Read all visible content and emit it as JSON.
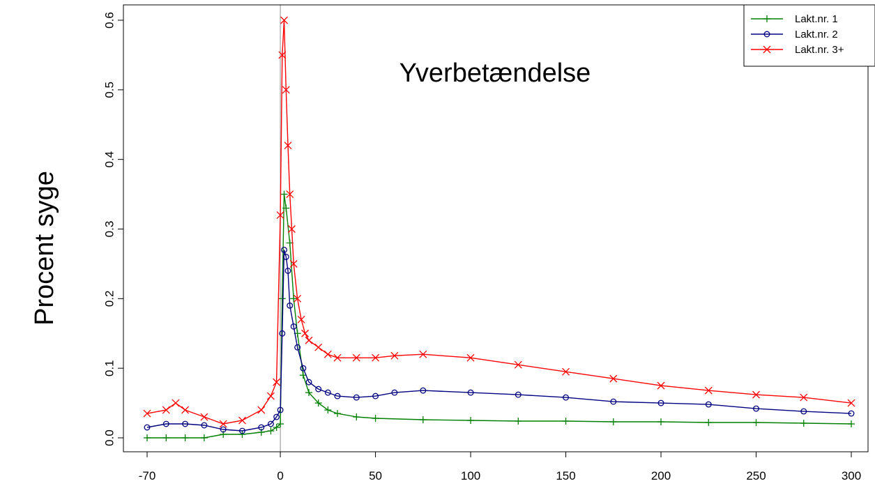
{
  "chart_data": {
    "type": "line",
    "title": "Yverbetændelse",
    "xlabel": "",
    "ylabel": "Procent syge",
    "xlim": [
      -70,
      300
    ],
    "ylim": [
      0,
      0.6
    ],
    "x_ticks": [
      -70,
      0,
      50,
      100,
      150,
      200,
      250,
      300
    ],
    "y_ticks": [
      0.0,
      0.1,
      0.2,
      0.3,
      0.4,
      0.5,
      0.6
    ],
    "x_tick_labels": [
      "-70",
      "0",
      "50",
      "100",
      "150",
      "200",
      "250",
      "300"
    ],
    "y_tick_labels": [
      "0.0",
      "0.1",
      "0.2",
      "0.3",
      "0.4",
      "0.5",
      "0.6"
    ],
    "vertical_reference_line": 0,
    "grid": false,
    "legend_position": "top-right",
    "series": [
      {
        "name": "Lakt.nr. 1",
        "color": "#008000",
        "marker": "plus",
        "x": [
          -70,
          -60,
          -50,
          -40,
          -30,
          -20,
          -10,
          -5,
          -2,
          0,
          1,
          2,
          3,
          5,
          7,
          9,
          12,
          15,
          20,
          25,
          30,
          40,
          50,
          75,
          100,
          125,
          150,
          175,
          200,
          225,
          250,
          275,
          300
        ],
        "y": [
          0.0,
          0.0,
          0.0,
          0.0,
          0.005,
          0.005,
          0.008,
          0.01,
          0.015,
          0.02,
          0.2,
          0.35,
          0.33,
          0.28,
          0.2,
          0.15,
          0.09,
          0.065,
          0.05,
          0.04,
          0.035,
          0.03,
          0.028,
          0.026,
          0.025,
          0.024,
          0.024,
          0.023,
          0.023,
          0.022,
          0.022,
          0.021,
          0.02
        ]
      },
      {
        "name": "Lakt.nr. 2",
        "color": "#000080",
        "marker": "circle",
        "x": [
          -70,
          -60,
          -50,
          -40,
          -30,
          -20,
          -10,
          -5,
          -2,
          0,
          1,
          2,
          3,
          4,
          5,
          7,
          9,
          12,
          15,
          20,
          25,
          30,
          40,
          50,
          60,
          75,
          100,
          125,
          150,
          175,
          200,
          225,
          250,
          275,
          300
        ],
        "y": [
          0.015,
          0.02,
          0.02,
          0.018,
          0.012,
          0.01,
          0.015,
          0.02,
          0.03,
          0.04,
          0.15,
          0.27,
          0.26,
          0.24,
          0.19,
          0.16,
          0.13,
          0.1,
          0.08,
          0.07,
          0.065,
          0.06,
          0.058,
          0.06,
          0.065,
          0.068,
          0.065,
          0.062,
          0.058,
          0.052,
          0.05,
          0.048,
          0.042,
          0.038,
          0.035
        ]
      },
      {
        "name": "Lakt.nr. 3+",
        "color": "#ff0000",
        "marker": "x",
        "x": [
          -70,
          -60,
          -55,
          -50,
          -40,
          -30,
          -20,
          -10,
          -5,
          -2,
          0,
          1,
          2,
          3,
          4,
          5,
          6,
          7,
          9,
          11,
          13,
          15,
          20,
          25,
          30,
          40,
          50,
          60,
          75,
          100,
          125,
          150,
          175,
          200,
          225,
          250,
          275,
          300
        ],
        "y": [
          0.035,
          0.04,
          0.05,
          0.04,
          0.03,
          0.02,
          0.025,
          0.04,
          0.06,
          0.08,
          0.32,
          0.55,
          0.6,
          0.5,
          0.42,
          0.35,
          0.3,
          0.25,
          0.2,
          0.17,
          0.15,
          0.14,
          0.13,
          0.12,
          0.115,
          0.115,
          0.115,
          0.118,
          0.12,
          0.115,
          0.105,
          0.095,
          0.085,
          0.075,
          0.068,
          0.062,
          0.058,
          0.05
        ]
      }
    ]
  }
}
